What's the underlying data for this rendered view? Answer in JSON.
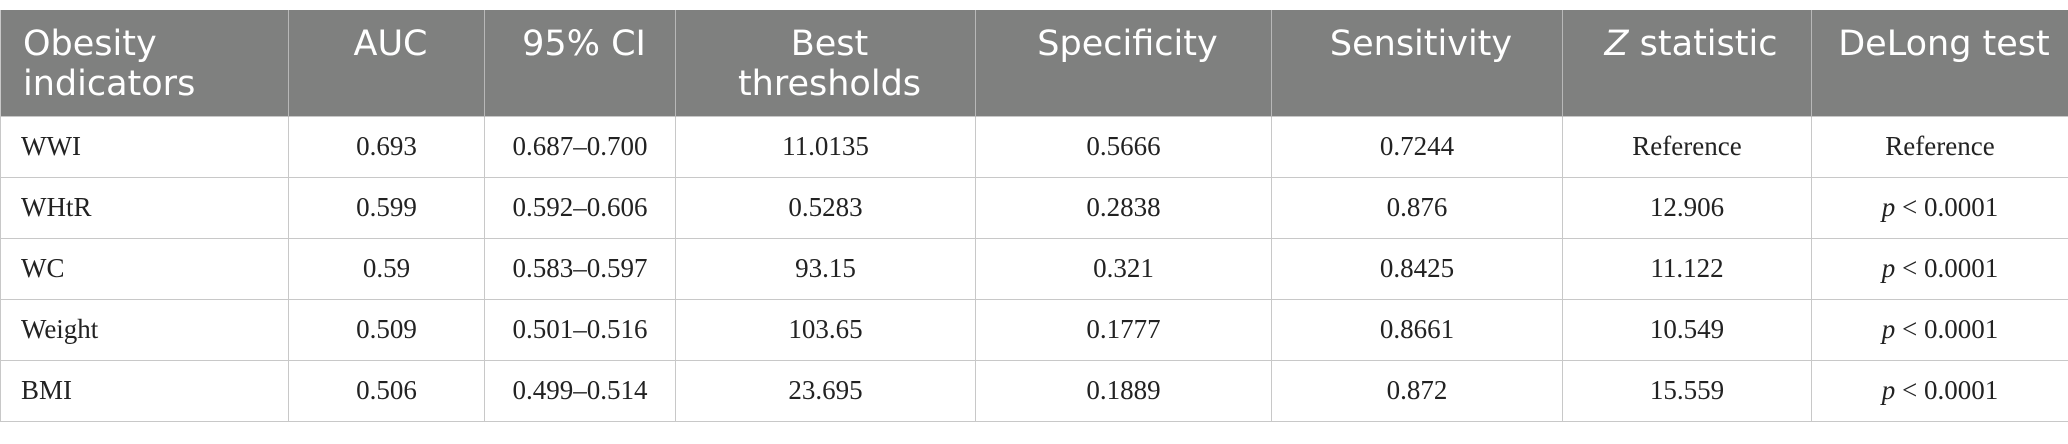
{
  "headers": [
    "Obesity indicators",
    "AUC",
    "95% CI",
    "Best thresholds",
    "Specificity",
    "Sensitivity",
    "Z statistic",
    "DeLong test"
  ],
  "header_z_letter": "Z",
  "header_z_rest": " statistic",
  "rows": [
    {
      "indicator": "WWI",
      "auc": "0.693",
      "ci": "0.687–0.700",
      "threshold": "11.0135",
      "specificity": "0.5666",
      "sensitivity": "0.7244",
      "z": "Reference",
      "delong": "Reference"
    },
    {
      "indicator": "WHtR",
      "auc": "0.599",
      "ci": "0.592–0.606",
      "threshold": "0.5283",
      "specificity": "0.2838",
      "sensitivity": "0.876",
      "z": "12.906",
      "delong": "< 0.0001"
    },
    {
      "indicator": "WC",
      "auc": "0.59",
      "ci": "0.583–0.597",
      "threshold": "93.15",
      "specificity": "0.321",
      "sensitivity": "0.8425",
      "z": "11.122",
      "delong": "< 0.0001"
    },
    {
      "indicator": "Weight",
      "auc": "0.509",
      "ci": "0.501–0.516",
      "threshold": "103.65",
      "specificity": "0.1777",
      "sensitivity": "0.8661",
      "z": "10.549",
      "delong": "< 0.0001"
    },
    {
      "indicator": "BMI",
      "auc": "0.506",
      "ci": "0.499–0.514",
      "threshold": "23.695",
      "specificity": "0.1889",
      "sensitivity": "0.872",
      "z": "15.559",
      "delong": "< 0.0001"
    }
  ],
  "p_symbol": "p",
  "colors": {
    "header_bg": "#7f807f",
    "header_text": "#ffffff",
    "border": "#c8c8c8"
  }
}
